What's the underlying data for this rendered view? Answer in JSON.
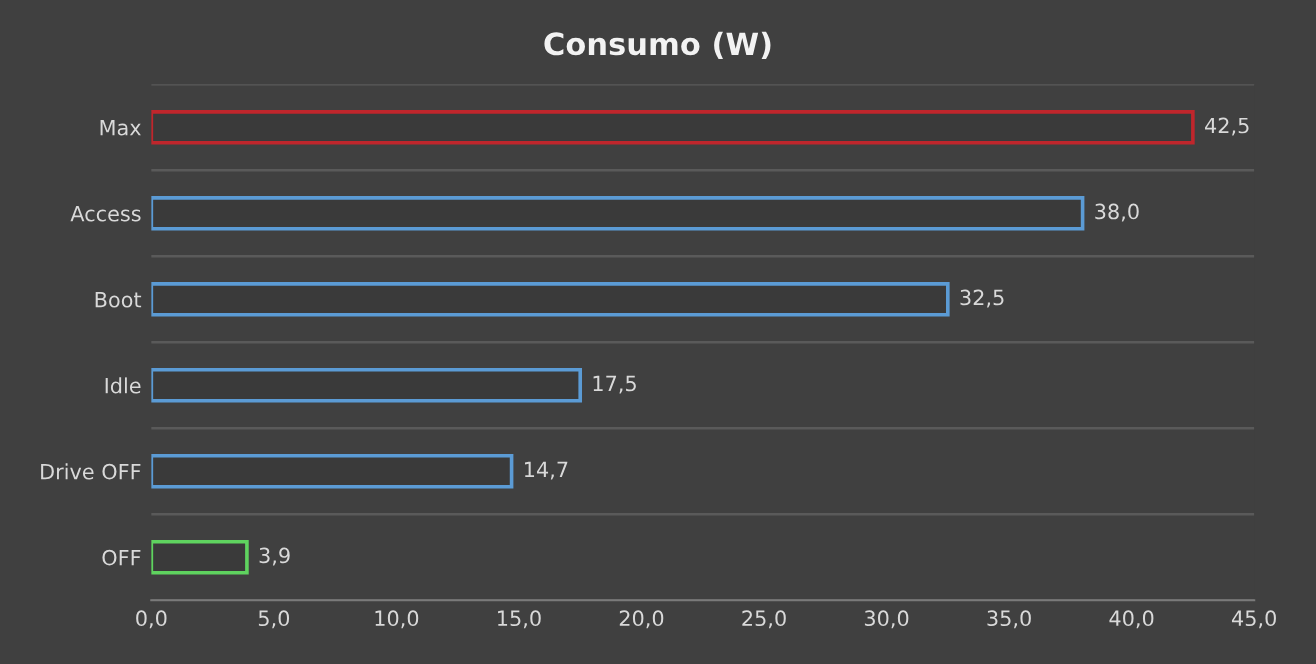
{
  "chart_data": {
    "type": "bar",
    "orientation": "horizontal",
    "title": "Consumo (W)",
    "categories": [
      "Max",
      "Access",
      "Boot",
      "Idle",
      "Drive OFF",
      "OFF"
    ],
    "values": [
      42.5,
      38.0,
      32.5,
      17.5,
      14.7,
      3.9
    ],
    "value_labels": [
      "42,5",
      "38,0",
      "32,5",
      "17,5",
      "14,7",
      "3,9"
    ],
    "colors": [
      "#c0262c",
      "#5b9bd5",
      "#5b9bd5",
      "#5b9bd5",
      "#5b9bd5",
      "#5fd35f"
    ],
    "xlim": [
      0,
      45
    ],
    "xticks": [
      {
        "value": 0,
        "label": "0,0"
      },
      {
        "value": 5,
        "label": "5,0"
      },
      {
        "value": 10,
        "label": "10,0"
      },
      {
        "value": 15,
        "label": "15,0"
      },
      {
        "value": 20,
        "label": "20,0"
      },
      {
        "value": 25,
        "label": "25,0"
      },
      {
        "value": 30,
        "label": "30,0"
      },
      {
        "value": 35,
        "label": "35,0"
      },
      {
        "value": 40,
        "label": "40,0"
      },
      {
        "value": 45,
        "label": "45,0"
      }
    ],
    "grid": "y",
    "legend": false
  }
}
